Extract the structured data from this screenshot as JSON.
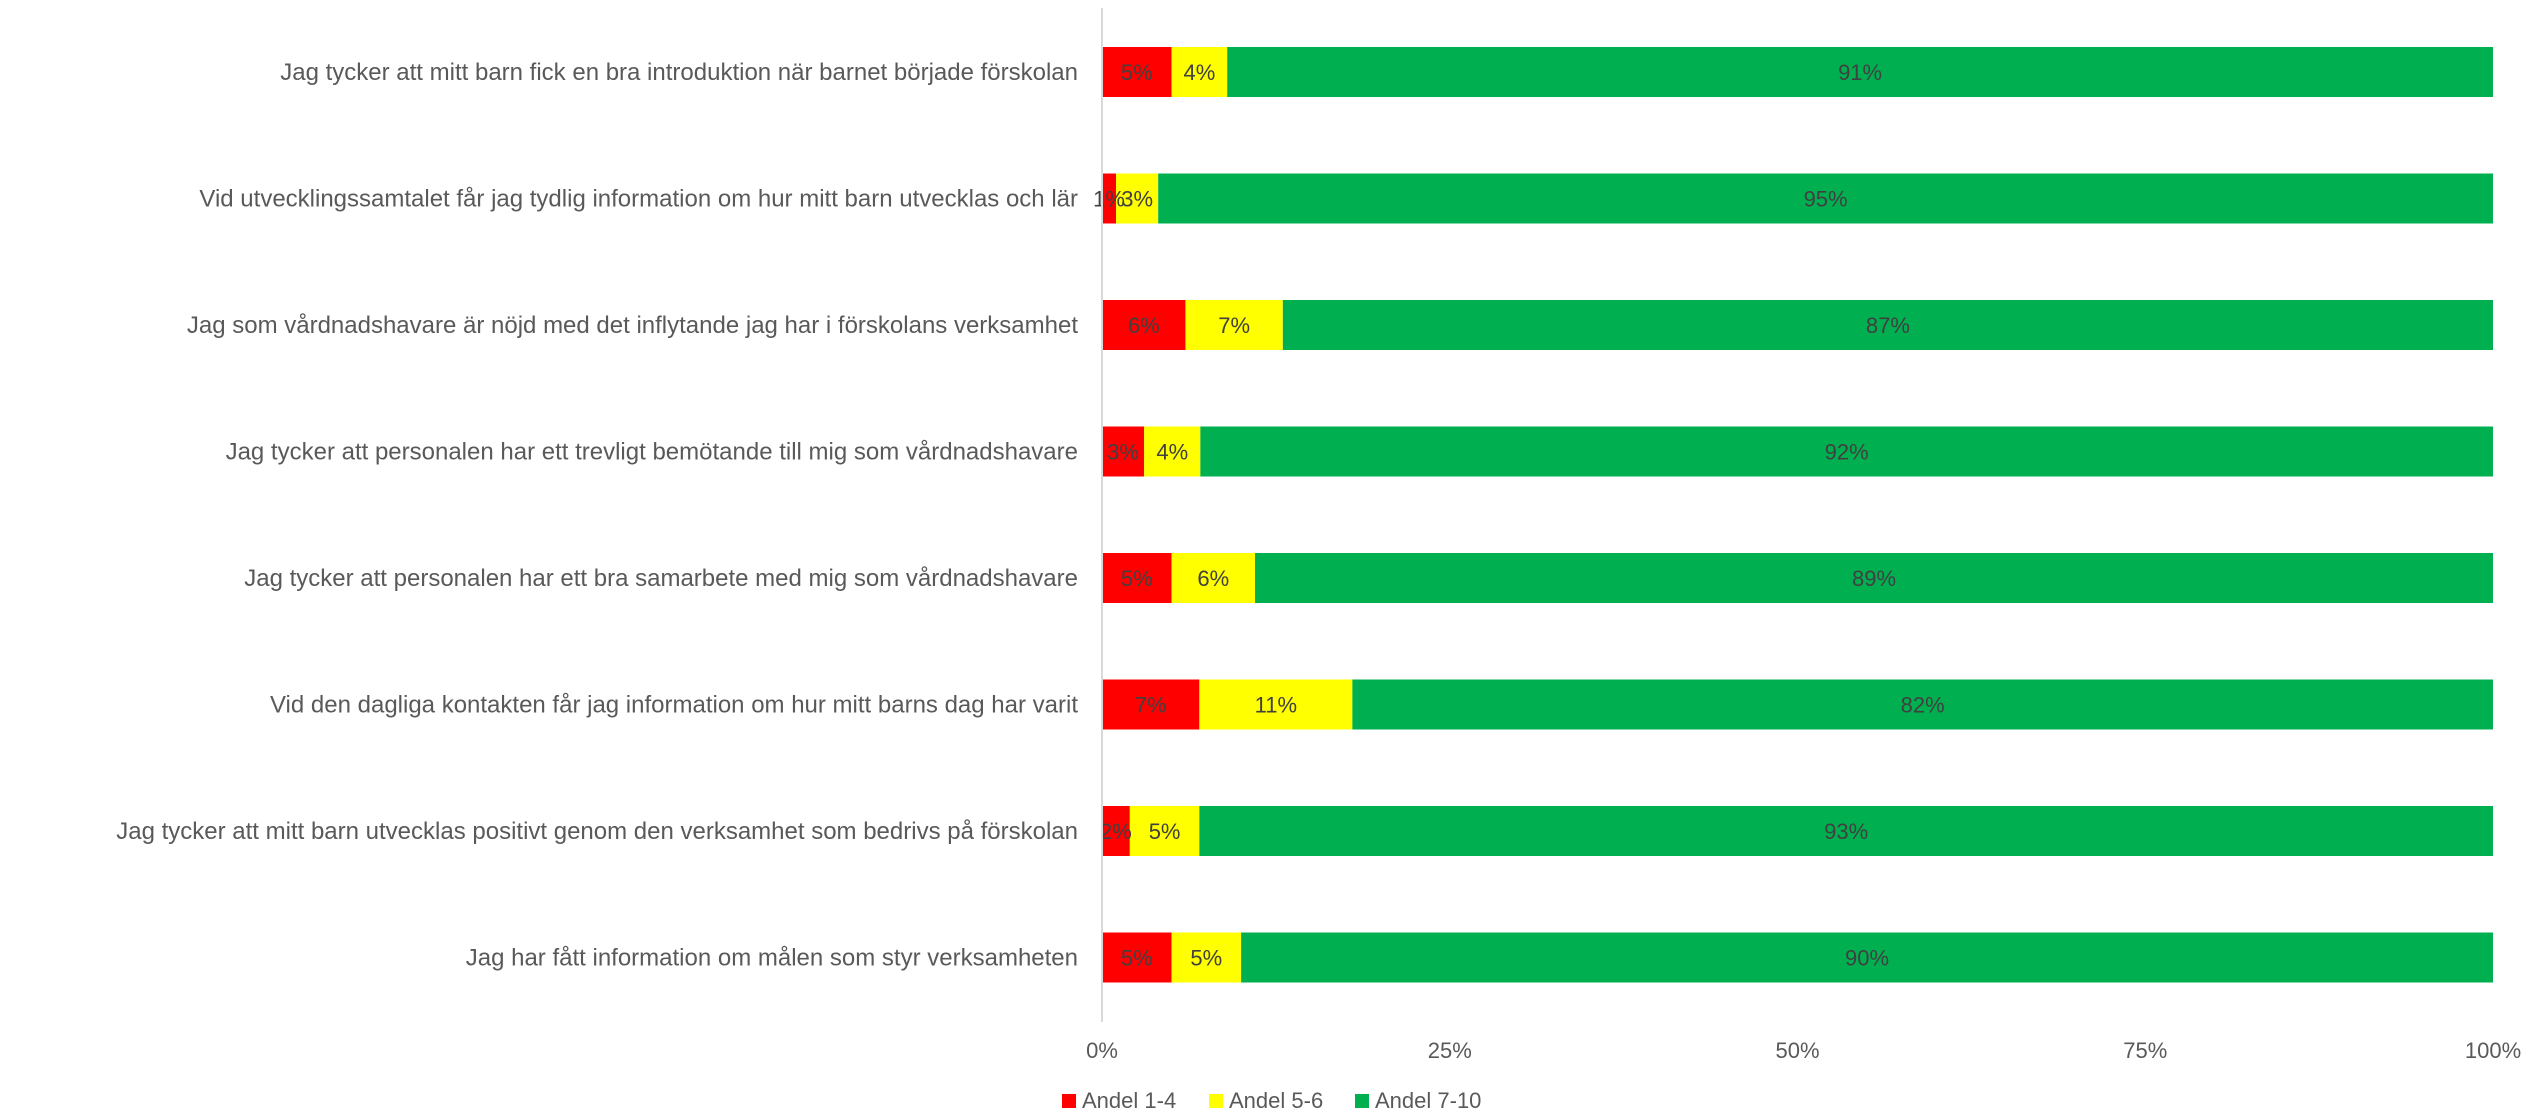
{
  "chart_data": {
    "type": "bar",
    "orientation": "horizontal",
    "stacked": true,
    "percent_stacked": true,
    "categories": [
      "Jag tycker att mitt barn fick en bra introduktion när barnet började förskolan",
      "Vid utvecklingssamtalet får jag tydlig information om hur mitt barn utvecklas och lär",
      "Jag som vårdnadshavare är nöjd med det inflytande jag har i förskolans verksamhet",
      "Jag tycker att personalen har ett trevligt bemötande till mig som vårdnadshavare",
      "Jag tycker att personalen har ett bra samarbete med mig som vårdnadshavare",
      "Vid den dagliga kontakten får jag information om hur mitt barns dag har varit",
      "Jag tycker att mitt barn utvecklas positivt genom den verksamhet som bedrivs på förskolan",
      "Jag har fått information om målen som styr verksamheten"
    ],
    "series": [
      {
        "name": "Andel 1-4",
        "color": "#FF0000",
        "values": [
          5,
          1,
          6,
          3,
          5,
          7,
          2,
          5
        ],
        "labels": [
          "5%",
          "1%",
          "6%",
          "3%",
          "5%",
          "7%",
          "2%",
          "5%"
        ]
      },
      {
        "name": "Andel 5-6",
        "color": "#FFFF00",
        "values": [
          4,
          3,
          7,
          4,
          6,
          11,
          5,
          5
        ],
        "labels": [
          "4%",
          "3%",
          "7%",
          "4%",
          "6%",
          "11%",
          "5%",
          "5%"
        ]
      },
      {
        "name": "Andel 7-10",
        "color": "#00B050",
        "values": [
          91,
          95,
          87,
          92,
          89,
          82,
          93,
          90
        ],
        "labels": [
          "91%",
          "95%",
          "87%",
          "92%",
          "89%",
          "82%",
          "93%",
          "90%"
        ]
      }
    ],
    "xlim": [
      0,
      100
    ],
    "x_ticks": [
      "0%",
      "25%",
      "50%",
      "75%",
      "100%"
    ],
    "grid": false,
    "legend_position": "bottom"
  }
}
